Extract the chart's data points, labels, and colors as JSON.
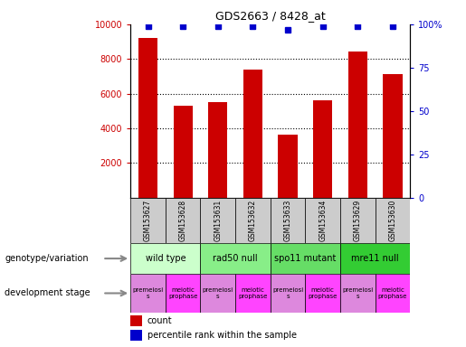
{
  "title": "GDS2663 / 8428_at",
  "samples": [
    "GSM153627",
    "GSM153628",
    "GSM153631",
    "GSM153632",
    "GSM153633",
    "GSM153634",
    "GSM153629",
    "GSM153630"
  ],
  "counts": [
    9200,
    5300,
    5500,
    7400,
    3650,
    5600,
    8450,
    7150
  ],
  "percentiles": [
    99,
    99,
    99,
    99,
    97,
    99,
    99,
    99
  ],
  "percentile_max": 100,
  "count_max": 10000,
  "yticks_left": [
    2000,
    4000,
    6000,
    8000,
    10000
  ],
  "yticks_right": [
    0,
    25,
    50,
    75,
    100
  ],
  "bar_color": "#cc0000",
  "dot_color": "#0000cc",
  "genotype_groups": [
    {
      "label": "wild type",
      "start": 0,
      "end": 2,
      "color": "#ccffcc"
    },
    {
      "label": "rad50 null",
      "start": 2,
      "end": 4,
      "color": "#88ee88"
    },
    {
      "label": "spo11 mutant",
      "start": 4,
      "end": 6,
      "color": "#66dd66"
    },
    {
      "label": "mre11 null",
      "start": 6,
      "end": 8,
      "color": "#33cc33"
    }
  ],
  "dev_stage_groups": [
    {
      "label": "premeiosi\ns",
      "start": 0,
      "end": 1,
      "color": "#dd88dd"
    },
    {
      "label": "meiotic\nprophase",
      "start": 1,
      "end": 2,
      "color": "#ff44ff"
    },
    {
      "label": "premeiosi\ns",
      "start": 2,
      "end": 3,
      "color": "#dd88dd"
    },
    {
      "label": "meiotic\nprophase",
      "start": 3,
      "end": 4,
      "color": "#ff44ff"
    },
    {
      "label": "premeiosi\ns",
      "start": 4,
      "end": 5,
      "color": "#dd88dd"
    },
    {
      "label": "meiotic\nprophase",
      "start": 5,
      "end": 6,
      "color": "#ff44ff"
    },
    {
      "label": "premeiosi\ns",
      "start": 6,
      "end": 7,
      "color": "#dd88dd"
    },
    {
      "label": "meiotic\nprophase",
      "start": 7,
      "end": 8,
      "color": "#ff44ff"
    }
  ],
  "sample_bg_color": "#cccccc",
  "left_label_color": "#cc0000",
  "right_label_color": "#0000cc",
  "annotation_row1_label": "genotype/variation",
  "annotation_row2_label": "development stage",
  "legend_count_label": "count",
  "legend_pct_label": "percentile rank within the sample",
  "fig_width": 5.15,
  "fig_height": 3.84,
  "dpi": 100
}
